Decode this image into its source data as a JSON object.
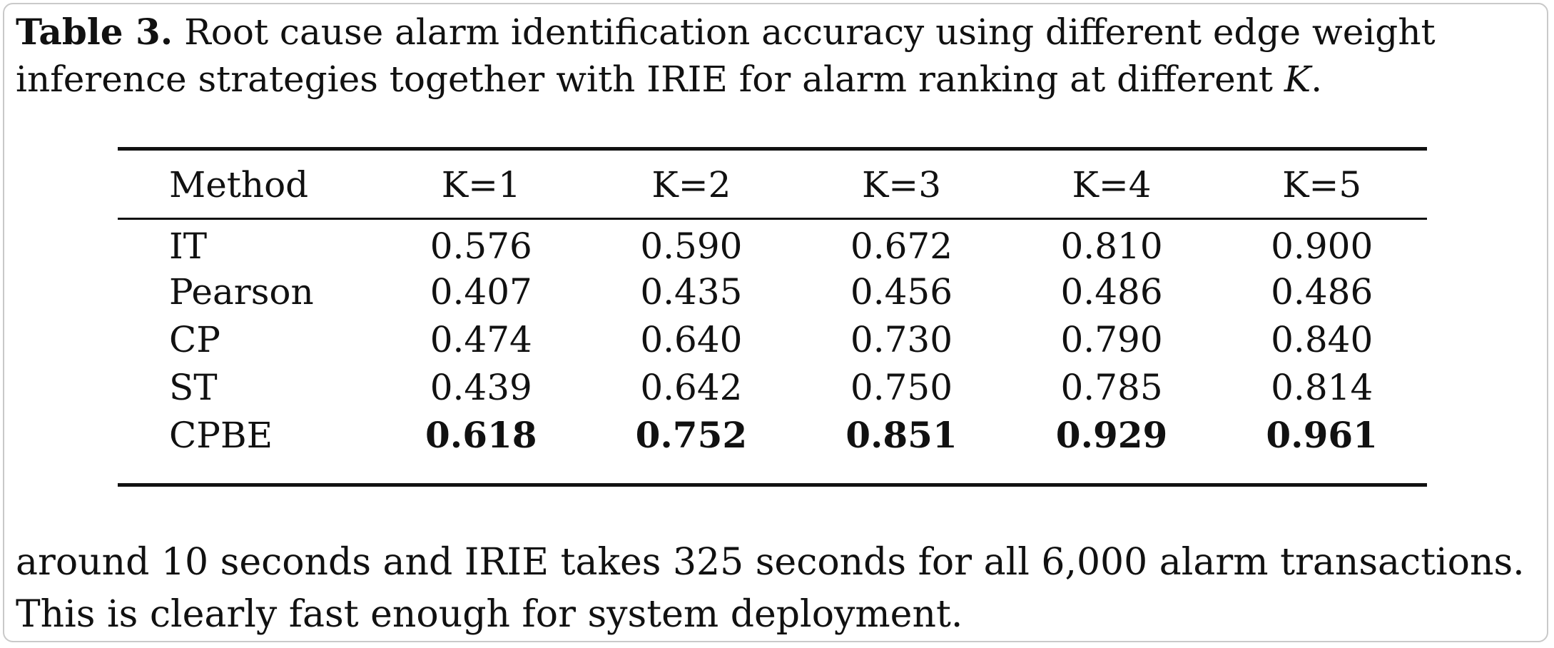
{
  "caption": {
    "label": "Table 3.",
    "text_before_k": " Root cause alarm identification accuracy using different edge weight inference strategies together with IRIE for alarm ranking at different ",
    "k_symbol": "K",
    "text_after_k": "."
  },
  "table": {
    "headers": [
      "Method",
      "K=1",
      "K=2",
      "K=3",
      "K=4",
      "K=5"
    ],
    "rows": [
      {
        "method": "IT",
        "values": [
          "0.576",
          "0.590",
          "0.672",
          "0.810",
          "0.900"
        ]
      },
      {
        "method": "Pearson",
        "values": [
          "0.407",
          "0.435",
          "0.456",
          "0.486",
          "0.486"
        ]
      },
      {
        "method": "CP",
        "values": [
          "0.474",
          "0.640",
          "0.730",
          "0.790",
          "0.840"
        ]
      },
      {
        "method": "ST",
        "values": [
          "0.439",
          "0.642",
          "0.750",
          "0.785",
          "0.814"
        ]
      },
      {
        "method": "CPBE",
        "values": [
          "0.618",
          "0.752",
          "0.851",
          "0.929",
          "0.961"
        ],
        "bold_values": true
      }
    ]
  },
  "body_text": {
    "line1": "around 10 seconds and IRIE takes 325 seconds for all 6,000 alarm transactions.",
    "line2": "This is clearly fast enough for system deployment."
  }
}
